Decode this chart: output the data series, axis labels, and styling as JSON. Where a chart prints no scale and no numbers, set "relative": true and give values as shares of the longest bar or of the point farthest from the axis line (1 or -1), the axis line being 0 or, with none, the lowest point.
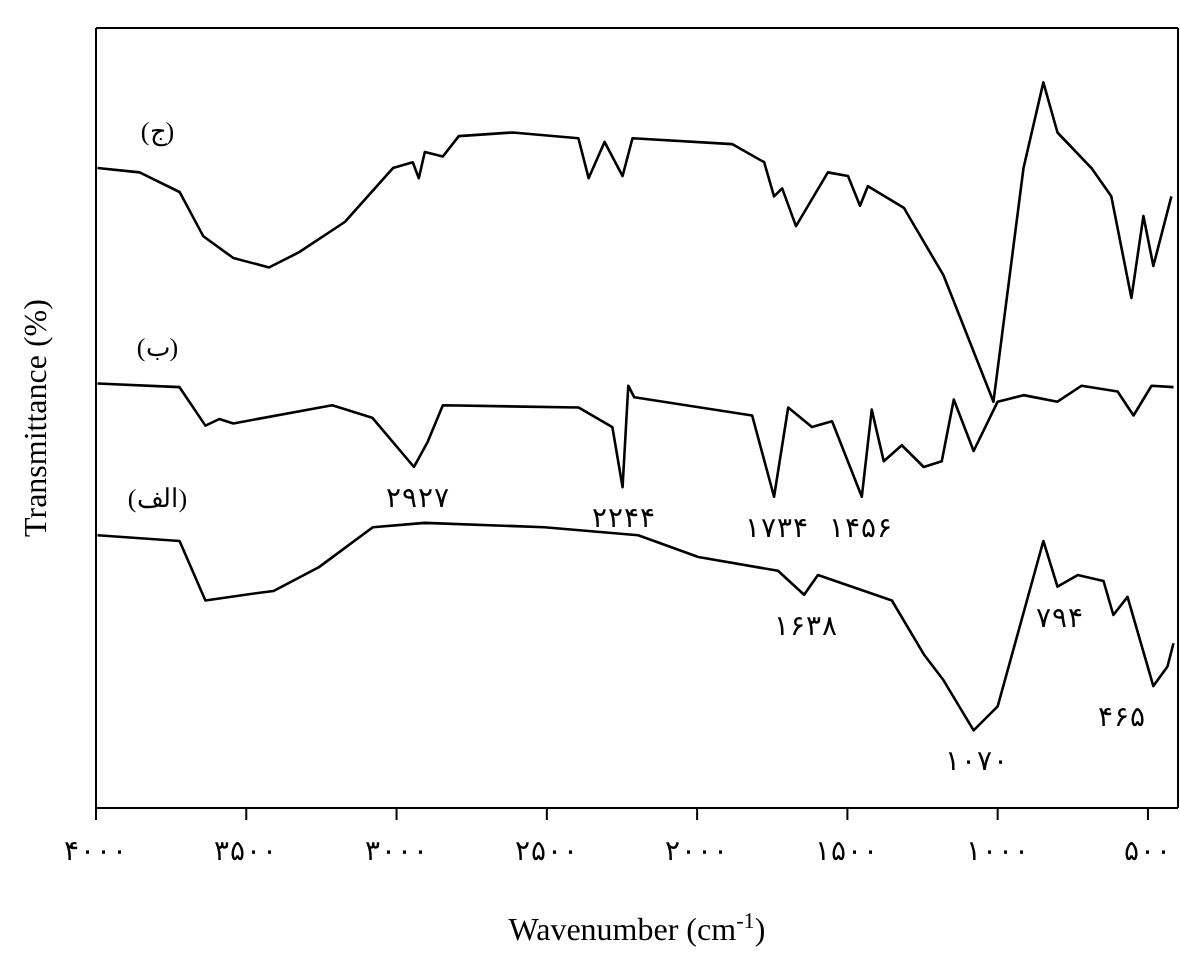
{
  "chart_data": {
    "type": "line",
    "relative": true,
    "xlabel": "Wavenumber (cm$^{-1}$)",
    "ylabel": "Transmittance (%)",
    "xlim": [
      4000,
      400
    ],
    "xticks": [
      {
        "value": 4000,
        "label": "۴۰۰۰"
      },
      {
        "value": 3500,
        "label": "۳۵۰۰"
      },
      {
        "value": 3000,
        "label": "۳۰۰۰"
      },
      {
        "value": 2500,
        "label": "۲۵۰۰"
      },
      {
        "value": 2000,
        "label": "۲۰۰۰"
      },
      {
        "value": 1500,
        "label": "۱۵۰۰"
      },
      {
        "value": 1000,
        "label": "۱۰۰۰"
      },
      {
        "value": 500,
        "label": "۵۰۰"
      }
    ],
    "marker": "none",
    "line_style": "solid",
    "series": [
      {
        "name": "(ج)",
        "color": "#000000",
        "x": [
          3995,
          3855,
          3722,
          3643,
          3543,
          3424,
          3324,
          3171,
          3012,
          2946,
          2926,
          2906,
          2846,
          2793,
          2614,
          2395,
          2361,
          2308,
          2248,
          2215,
          1883,
          1777,
          1744,
          1717,
          1671,
          1565,
          1498,
          1458,
          1432,
          1312,
          1180,
          1014,
          914,
          848,
          801,
          688,
          622,
          555,
          515,
          482,
          422
        ],
        "values": [
          0.882,
          0.876,
          0.849,
          0.788,
          0.758,
          0.745,
          0.766,
          0.808,
          0.882,
          0.89,
          0.868,
          0.904,
          0.898,
          0.926,
          0.931,
          0.923,
          0.868,
          0.918,
          0.871,
          0.923,
          0.915,
          0.89,
          0.843,
          0.854,
          0.802,
          0.876,
          0.871,
          0.83,
          0.857,
          0.827,
          0.734,
          0.56,
          0.882,
          1,
          0.931,
          0.882,
          0.843,
          0.703,
          0.816,
          0.747,
          0.843
        ]
      },
      {
        "name": "(ب)",
        "color": "#000000",
        "x": [
          3995,
          3722,
          3636,
          3590,
          3543,
          3214,
          3081,
          2942,
          2896,
          2846,
          2395,
          2282,
          2248,
          2229,
          2209,
          1817,
          1744,
          1697,
          1618,
          1551,
          1452,
          1419,
          1379,
          1319,
          1246,
          1186,
          1146,
          1080,
          1000,
          914,
          801,
          721,
          601,
          548,
          488,
          415
        ],
        "values": [
          0.585,
          0.58,
          0.527,
          0.536,
          0.53,
          0.555,
          0.538,
          0.47,
          0.505,
          0.555,
          0.552,
          0.525,
          0.442,
          0.582,
          0.566,
          0.541,
          0.429,
          0.552,
          0.525,
          0.533,
          0.429,
          0.549,
          0.478,
          0.5,
          0.47,
          0.478,
          0.563,
          0.492,
          0.56,
          0.569,
          0.56,
          0.582,
          0.574,
          0.541,
          0.582,
          0.58
        ]
      },
      {
        "name": "(الف)",
        "color": "#000000",
        "x": [
          3995,
          3722,
          3636,
          3503,
          3410,
          3258,
          3079,
          2906,
          2508,
          2196,
          1996,
          1731,
          1644,
          1598,
          1352,
          1246,
          1180,
          1080,
          1000,
          848,
          801,
          734,
          648,
          615,
          568,
          482,
          435,
          415
        ],
        "values": [
          0.376,
          0.368,
          0.286,
          0.294,
          0.299,
          0.332,
          0.387,
          0.393,
          0.387,
          0.376,
          0.346,
          0.327,
          0.294,
          0.321,
          0.286,
          0.212,
          0.176,
          0.107,
          0.14,
          0.368,
          0.305,
          0.321,
          0.313,
          0.266,
          0.291,
          0.168,
          0.195,
          0.227
        ]
      }
    ],
    "annotations": [
      {
        "text": "۲۹۲۷",
        "x": 2927,
        "y": 0.47
      },
      {
        "text": "۲۲۴۴",
        "x": 2244,
        "y": 0.442
      },
      {
        "text": "۱۷۳۴",
        "x": 1734,
        "y": 0.429
      },
      {
        "text": "۱۴۵۶",
        "x": 1456,
        "y": 0.429
      },
      {
        "text": "۱۶۳۸",
        "x": 1638,
        "y": 0.294
      },
      {
        "text": "۱۰۷۰",
        "x": 1070,
        "y": 0.107
      },
      {
        "text": "۷۹۴",
        "x": 794,
        "y": 0.305
      },
      {
        "text": "۴۶۵",
        "x": 465,
        "y": 0.168
      }
    ]
  }
}
